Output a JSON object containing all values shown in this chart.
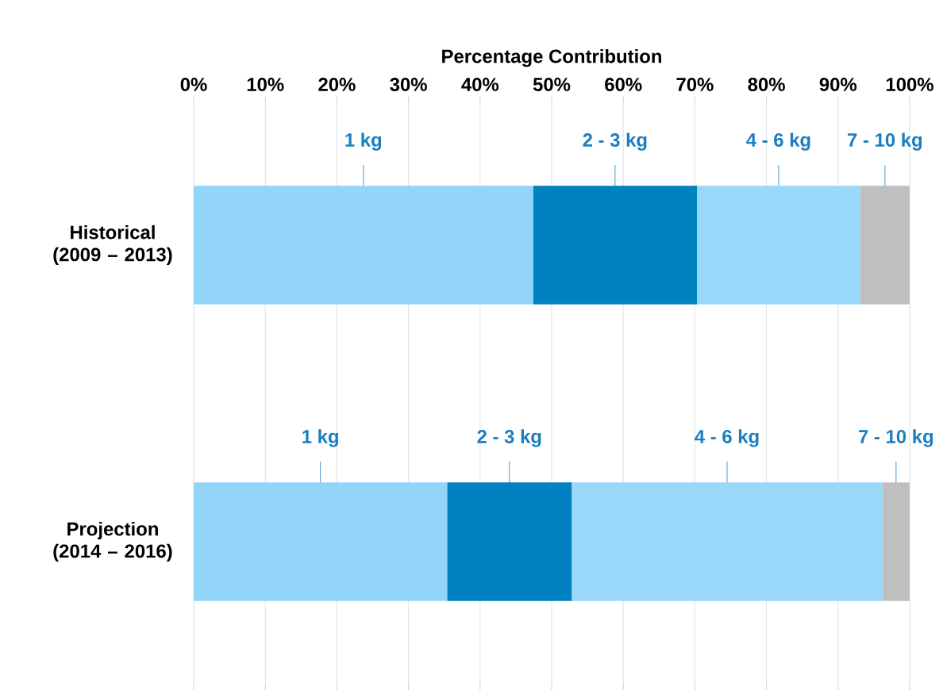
{
  "chart_data": {
    "type": "bar",
    "orientation": "horizontal",
    "stacked": true,
    "xlabel": "Percentage Contribution",
    "categories": [
      "Historical (2009 – 2013)",
      "Projection (2014 – 2016)"
    ],
    "series": [
      {
        "name": "1 kg",
        "color": "#93d5f8",
        "values": [
          47.4,
          35.4
        ]
      },
      {
        "name": "2 - 3 kg",
        "color": "#0081c0",
        "values": [
          22.9,
          17.4
        ]
      },
      {
        "name": "4 - 6 kg",
        "color": "#9ad8fa",
        "values": [
          22.8,
          43.4
        ]
      },
      {
        "name": "7 - 10 kg",
        "color": "#bfbfbf",
        "values": [
          6.9,
          3.8
        ]
      }
    ],
    "xlim": [
      0,
      100
    ],
    "xticks": [
      {
        "value": 0,
        "label": "0%"
      },
      {
        "value": 10,
        "label": "10%"
      },
      {
        "value": 20,
        "label": "20%"
      },
      {
        "value": 30,
        "label": "30%"
      },
      {
        "value": 40,
        "label": "40%"
      },
      {
        "value": 50,
        "label": "50%"
      },
      {
        "value": 60,
        "label": "60%"
      },
      {
        "value": 70,
        "label": "70%"
      },
      {
        "value": 80,
        "label": "80%"
      },
      {
        "value": 90,
        "label": "90%"
      },
      {
        "value": 100,
        "label": "100%"
      }
    ],
    "grid": "x"
  }
}
